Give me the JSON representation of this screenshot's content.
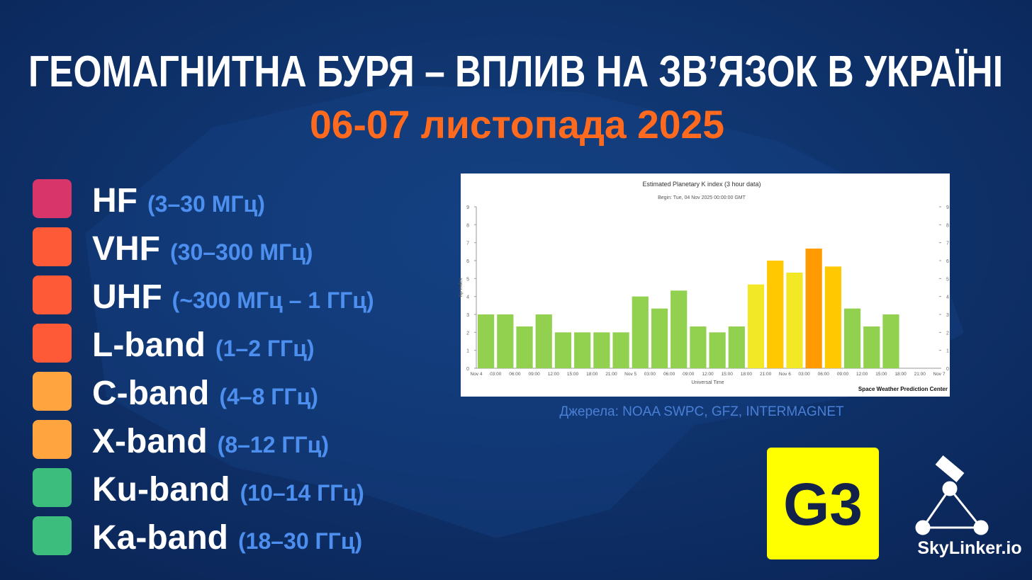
{
  "title": "ГЕОМАГНИТНА БУРЯ – ВПЛИВ НА ЗВ’ЯЗОК В УКРАЇНІ",
  "subtitle": "06-07 листопада 2025",
  "bands": [
    {
      "name": "HF",
      "range": "(3–30 МГц)",
      "color": "#d8356a"
    },
    {
      "name": "VHF",
      "range": "(30–300 МГц)",
      "color": "#ff5a37"
    },
    {
      "name": "UHF",
      "range": "(~300 МГц – 1 ГГц)",
      "color": "#ff5a37"
    },
    {
      "name": "L-band",
      "range": "(1–2 ГГц)",
      "color": "#ff5a37"
    },
    {
      "name": "C-band",
      "range": "(4–8 ГГц)",
      "color": "#ffa43f"
    },
    {
      "name": "X-band",
      "range": "(8–12 ГГц)",
      "color": "#ffa43f"
    },
    {
      "name": "Ku-band",
      "range": "(10–14 ГГц)",
      "color": "#3dbd7d"
    },
    {
      "name": "Ka-band",
      "range": "(18–30 ГГц)",
      "color": "#3dbd7d"
    }
  ],
  "source": "Джерела: NOAA SWPC, GFZ, INTERMAGNET",
  "badge": "G3",
  "brand": "SkyLinker.io",
  "chart_data": {
    "type": "bar",
    "title": "Estimated Planetary K index (3 hour data)",
    "subtitle": "Begin: Tue, 04 Nov 2025 00:00:00 GMT",
    "x_label": "Universal Time",
    "y_label": "Kp index",
    "credit": "Space Weather Prediction Center",
    "categories": [
      "Nov 4",
      "03:00",
      "06:00",
      "09:00",
      "12:00",
      "15:00",
      "18:00",
      "21:00",
      "Nov 5",
      "03:00",
      "06:00",
      "09:00",
      "12:00",
      "15:00",
      "18:00",
      "21:00",
      "Nov 6",
      "03:00",
      "06:00",
      "09:00",
      "12:00",
      "15:00",
      "18:00",
      "21:00"
    ],
    "x_end_label": "Nov 7",
    "values": [
      3,
      3,
      2.33,
      3,
      2,
      2,
      2,
      2,
      4,
      3.33,
      4.33,
      2.33,
      2,
      2.33,
      4.67,
      6,
      5.33,
      6.67,
      5.67,
      3.33,
      2.33,
      3,
      null,
      null
    ],
    "colors": [
      "#92d050",
      "#92d050",
      "#92d050",
      "#92d050",
      "#92d050",
      "#92d050",
      "#92d050",
      "#92d050",
      "#92d050",
      "#92d050",
      "#92d050",
      "#92d050",
      "#92d050",
      "#92d050",
      "#f2e826",
      "#ffc800",
      "#f2e826",
      "#ff9a00",
      "#ffc800",
      "#92d050",
      "#92d050",
      "#92d050",
      null,
      null
    ],
    "ylim": [
      0,
      9
    ],
    "yticks": [
      0,
      1,
      2,
      3,
      4,
      5,
      6,
      7,
      8,
      9
    ],
    "y2lim": [
      0,
      9
    ],
    "y2ticks": [
      0,
      1,
      2,
      3,
      4,
      5,
      6,
      7,
      8,
      9
    ]
  }
}
